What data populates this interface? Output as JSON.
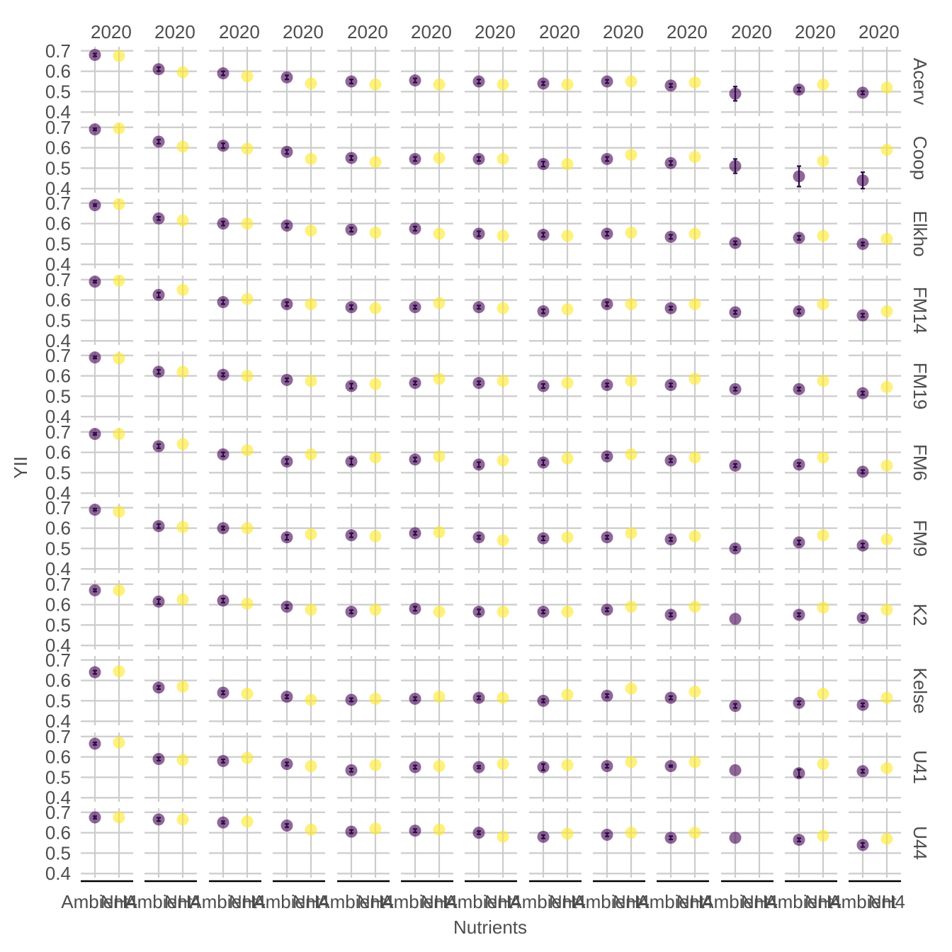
{
  "chart_data": {
    "type": "scatter",
    "title": "",
    "xlabel": "Nutrients",
    "ylabel": "YII",
    "ylim": [
      0.38,
      0.72
    ],
    "y_ticks": [
      "0.4",
      "0.5",
      "0.6",
      "0.7"
    ],
    "x_categories": [
      "Ambient",
      "NH4"
    ],
    "x_tick_text": [
      "Ambient",
      "NH4"
    ],
    "column_strip_labels": [
      "2020",
      "2020",
      "2020",
      "2020",
      "2020",
      "2020",
      "2020",
      "2020",
      "2020",
      "2020",
      "2020",
      "2020",
      "2020"
    ],
    "row_strip_labels": [
      "Acerv",
      "Coop",
      "Elkho",
      "FM14",
      "FM19",
      "FM6",
      "FM9",
      "K2",
      "Kelse",
      "U41",
      "U44"
    ],
    "grid": true,
    "legend": "none",
    "colors": {
      "Ambient": "#440154",
      "NH4": "#fde725",
      "grid": "#cccccc",
      "error_bar": "#2a0a45",
      "axis_line": "#000000"
    },
    "series": [
      {
        "name": "Ambient",
        "values": [
          [
            0.68,
            0.61,
            0.59,
            0.57,
            0.55,
            0.555,
            0.55,
            0.54,
            0.55,
            0.53,
            0.49,
            0.51,
            0.495
          ],
          [
            0.69,
            0.63,
            0.61,
            0.58,
            0.55,
            0.545,
            0.545,
            0.52,
            0.545,
            0.525,
            0.51,
            0.46,
            0.44
          ],
          [
            0.69,
            0.625,
            0.6,
            0.59,
            0.57,
            0.575,
            0.55,
            0.545,
            0.55,
            0.535,
            0.505,
            0.53,
            0.5
          ],
          [
            0.69,
            0.625,
            0.59,
            0.58,
            0.565,
            0.565,
            0.565,
            0.545,
            0.58,
            0.56,
            0.54,
            0.545,
            0.525
          ],
          [
            0.69,
            0.62,
            0.605,
            0.58,
            0.55,
            0.565,
            0.565,
            0.55,
            0.555,
            0.555,
            0.535,
            0.535,
            0.515
          ],
          [
            0.69,
            0.63,
            0.59,
            0.555,
            0.555,
            0.565,
            0.54,
            0.55,
            0.58,
            0.56,
            0.535,
            0.54,
            0.505
          ],
          [
            0.69,
            0.61,
            0.6,
            0.555,
            0.565,
            0.575,
            0.555,
            0.55,
            0.555,
            0.545,
            0.5,
            0.53,
            0.515
          ],
          [
            0.67,
            0.615,
            0.62,
            0.59,
            0.565,
            0.58,
            0.565,
            0.565,
            0.575,
            0.55,
            0.53,
            0.55,
            0.535
          ],
          [
            0.64,
            0.565,
            0.54,
            0.52,
            0.505,
            0.51,
            0.515,
            0.5,
            0.525,
            0.515,
            0.475,
            0.49,
            0.48
          ],
          [
            0.665,
            0.59,
            0.58,
            0.565,
            0.535,
            0.55,
            0.55,
            0.55,
            0.555,
            0.555,
            0.535,
            0.52,
            0.53
          ],
          [
            0.675,
            0.665,
            0.65,
            0.635,
            0.605,
            0.61,
            0.6,
            0.58,
            0.59,
            0.575,
            0.575,
            0.565,
            0.54
          ]
        ],
        "error": [
          [
            0.007,
            0.01,
            0.01,
            0.01,
            0.01,
            0.01,
            0.01,
            0.008,
            0.008,
            0.008,
            0.035,
            0.01,
            0.008
          ],
          [
            0.005,
            0.01,
            0.012,
            0.01,
            0.01,
            0.01,
            0.01,
            0.012,
            0.01,
            0.01,
            0.035,
            0.05,
            0.04
          ],
          [
            0.005,
            0.008,
            0.01,
            0.01,
            0.01,
            0.01,
            0.012,
            0.01,
            0.01,
            0.01,
            0.008,
            0.01,
            0.008
          ],
          [
            0.005,
            0.012,
            0.01,
            0.01,
            0.01,
            0.008,
            0.008,
            0.01,
            0.01,
            0.008,
            0.008,
            0.01,
            0.008
          ],
          [
            0.005,
            0.01,
            0.008,
            0.008,
            0.012,
            0.008,
            0.008,
            0.01,
            0.008,
            0.008,
            0.008,
            0.008,
            0.008
          ],
          [
            0.005,
            0.01,
            0.01,
            0.012,
            0.015,
            0.01,
            0.012,
            0.012,
            0.008,
            0.008,
            0.008,
            0.008,
            0.008
          ],
          [
            0.005,
            0.01,
            0.008,
            0.012,
            0.01,
            0.008,
            0.008,
            0.01,
            0.008,
            0.008,
            0.008,
            0.01,
            0.01
          ],
          [
            0.006,
            0.012,
            0.01,
            0.008,
            0.008,
            0.01,
            0.012,
            0.008,
            0.008,
            0.008,
            0,
            0.008,
            0.01
          ],
          [
            0.008,
            0.008,
            0.008,
            0.008,
            0.008,
            0.008,
            0.008,
            0.008,
            0.008,
            0.008,
            0.01,
            0.008,
            0.008
          ],
          [
            0.006,
            0.008,
            0.008,
            0.008,
            0.008,
            0.008,
            0.006,
            0.015,
            0.008,
            0.004,
            0,
            0.018,
            0.008
          ],
          [
            0.006,
            0.008,
            0.006,
            0.008,
            0.008,
            0.008,
            0.008,
            0.008,
            0.008,
            0.008,
            0,
            0.008,
            0.01
          ]
        ]
      },
      {
        "name": "NH4",
        "values": [
          [
            0.675,
            0.595,
            0.575,
            0.54,
            0.535,
            0.535,
            0.535,
            0.535,
            0.55,
            0.545,
            null,
            0.535,
            0.52
          ],
          [
            0.695,
            0.605,
            0.595,
            0.545,
            0.53,
            0.55,
            0.545,
            0.52,
            0.565,
            0.555,
            null,
            0.535,
            0.59
          ],
          [
            0.695,
            0.615,
            0.6,
            0.565,
            0.555,
            0.55,
            0.54,
            0.54,
            0.555,
            0.55,
            null,
            0.54,
            0.525
          ],
          [
            0.695,
            0.65,
            0.605,
            0.58,
            0.56,
            0.585,
            0.56,
            0.555,
            0.58,
            0.58,
            null,
            0.58,
            0.545
          ],
          [
            0.685,
            0.62,
            0.6,
            0.575,
            0.56,
            0.585,
            0.575,
            0.565,
            0.575,
            0.585,
            null,
            0.575,
            0.545
          ],
          [
            0.69,
            0.64,
            0.61,
            0.59,
            0.575,
            0.58,
            0.56,
            0.57,
            0.59,
            0.575,
            null,
            0.575,
            0.535
          ],
          [
            0.68,
            0.605,
            0.6,
            0.57,
            0.56,
            0.58,
            0.54,
            0.555,
            0.575,
            0.56,
            null,
            0.565,
            0.545
          ],
          [
            0.67,
            0.625,
            0.605,
            0.575,
            0.575,
            0.565,
            0.565,
            0.565,
            0.59,
            0.59,
            null,
            0.585,
            0.575
          ],
          [
            0.645,
            0.57,
            0.535,
            0.505,
            0.51,
            0.52,
            0.515,
            0.53,
            0.56,
            0.545,
            null,
            0.535,
            0.515
          ],
          [
            0.67,
            0.585,
            0.595,
            0.555,
            0.56,
            0.555,
            0.565,
            0.56,
            0.575,
            0.575,
            null,
            0.565,
            0.545
          ],
          [
            0.675,
            0.665,
            0.655,
            0.615,
            0.62,
            0.615,
            0.58,
            0.595,
            0.6,
            0.6,
            null,
            0.585,
            0.57
          ]
        ]
      }
    ]
  }
}
